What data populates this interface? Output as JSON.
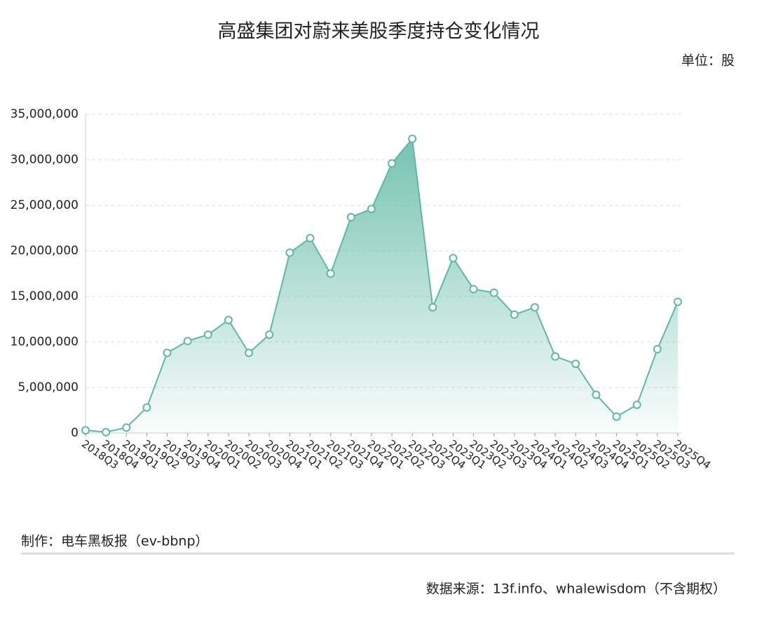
{
  "chart_data": {
    "type": "area",
    "title": "高盛集团对蔚来美股季度持仓变化情况",
    "unit_label": "单位：股",
    "credit": "制作：电车黑板报（ev-bbnp）",
    "source": "数据来源：13f.info、whalewisdom（不含期权）",
    "categories": [
      "2018Q3",
      "2018Q4",
      "2019Q1",
      "2019Q2",
      "2019Q3",
      "2019Q4",
      "2020Q1",
      "2020Q2",
      "2020Q3",
      "2020Q4",
      "2021Q1",
      "2021Q2",
      "2021Q3",
      "2021Q4",
      "2022Q1",
      "2022Q2",
      "2022Q3",
      "2022Q4",
      "2023Q1",
      "2023Q2",
      "2023Q3",
      "2023Q4",
      "2024Q1",
      "2024Q2",
      "2024Q3",
      "2024Q4",
      "2025Q1",
      "2025Q2",
      "2025Q3",
      "2025Q4"
    ],
    "values": [
      300000,
      100000,
      600000,
      2800000,
      8800000,
      10100000,
      10800000,
      12400000,
      8800000,
      10800000,
      19800000,
      21400000,
      17500000,
      23700000,
      24600000,
      29600000,
      32300000,
      13800000,
      19200000,
      15800000,
      15400000,
      13000000,
      13800000,
      8400000,
      7600000,
      4200000,
      1800000,
      3100000,
      9200000,
      14400000
    ],
    "color": "#5db8a4",
    "ylim": [
      0,
      35000000
    ],
    "yticks": [
      0,
      {
        "value": 5000000,
        "label": "5,000,000"
      },
      {
        "value": 10000000,
        "label": "10,000,000"
      },
      {
        "value": 15000000,
        "label": "15,000,000"
      },
      {
        "value": 20000000,
        "label": "20,000,000"
      },
      {
        "value": 25000000,
        "label": "25,000,000"
      },
      {
        "value": 30000000,
        "label": "30,000,000"
      },
      {
        "value": 35000000,
        "label": "35,000,000"
      }
    ],
    "grid": true
  }
}
